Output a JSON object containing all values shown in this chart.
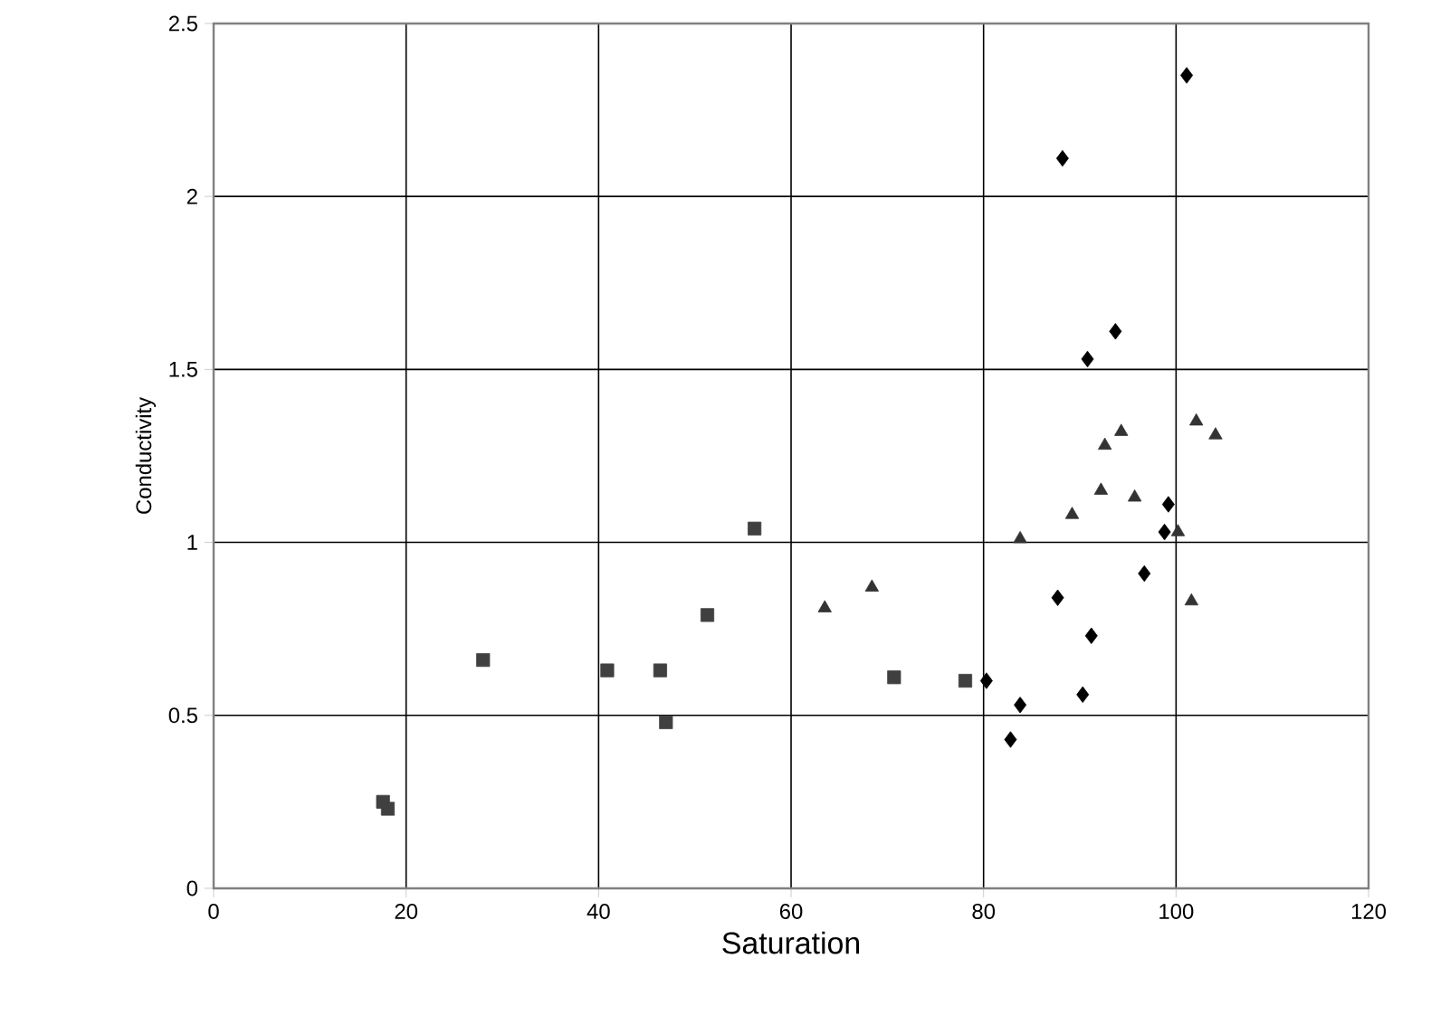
{
  "chart_data": {
    "type": "scatter",
    "xlabel": "Saturation",
    "ylabel": "Conductivity",
    "xlim": [
      0,
      120
    ],
    "ylim": [
      0,
      2.5
    ],
    "xticks": [
      0,
      20,
      40,
      60,
      80,
      100,
      120
    ],
    "yticks": [
      0,
      0.5,
      1,
      1.5,
      2,
      2.5
    ],
    "grid": true,
    "series": [
      {
        "color": "#404040",
        "marker": "square",
        "x": [
          17.6,
          18.1,
          28.0,
          40.9,
          46.4,
          47.0,
          51.3,
          56.2,
          70.7,
          78.1
        ],
        "values": [
          0.25,
          0.23,
          0.66,
          0.63,
          0.63,
          0.48,
          0.79,
          1.04,
          0.61,
          0.6
        ]
      },
      {
        "color": "#333333",
        "marker": "triangle",
        "x": [
          63.5,
          68.4,
          83.8,
          89.2,
          92.2,
          95.7,
          92.6,
          94.3,
          102.1,
          104.1,
          100.2,
          101.6
        ],
        "values": [
          0.81,
          0.87,
          1.01,
          1.08,
          1.15,
          1.13,
          1.28,
          1.32,
          1.35,
          1.31,
          1.03,
          0.83
        ]
      },
      {
        "color": "#000000",
        "marker": "diamond",
        "x": [
          101.1,
          88.2,
          93.7,
          90.8,
          99.2,
          98.8,
          96.7,
          87.7,
          91.2,
          80.3,
          83.8,
          90.3,
          82.8
        ],
        "values": [
          2.35,
          2.11,
          1.61,
          1.53,
          1.11,
          1.03,
          0.91,
          0.84,
          0.73,
          0.6,
          0.53,
          0.56,
          0.43
        ]
      }
    ]
  }
}
